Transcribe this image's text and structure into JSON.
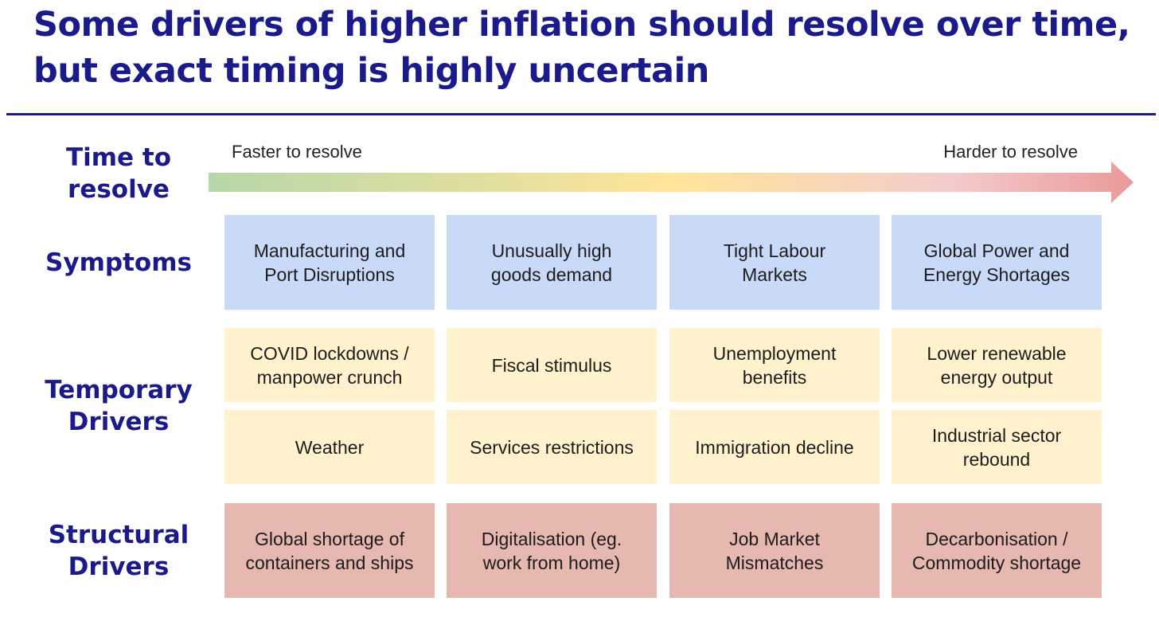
{
  "title": {
    "line1": "Some drivers of higher inflation should resolve over time,",
    "line2": "but exact timing is highly uncertain"
  },
  "labels": {
    "time_to_resolve": [
      "Time to",
      "resolve"
    ],
    "symptoms": [
      "Symptoms"
    ],
    "temporary_drivers": [
      "Temporary",
      "Drivers"
    ],
    "structural_drivers": [
      "Structural",
      "Drivers"
    ]
  },
  "scale": {
    "left": "Faster to resolve",
    "right": "Harder to resolve",
    "colors": [
      "#b6d7a8",
      "#ffe599",
      "#f4cccc",
      "#ea9999"
    ]
  },
  "symptoms": [
    [
      "Manufacturing and",
      "Port Disruptions"
    ],
    [
      "Unusually high",
      "goods demand"
    ],
    [
      "Tight Labour",
      "Markets"
    ],
    [
      "Global Power and",
      "Energy Shortages"
    ]
  ],
  "temporary_row1": [
    [
      "COVID lockdowns /",
      "manpower crunch"
    ],
    [
      "Fiscal stimulus"
    ],
    [
      "Unemployment",
      "benefits"
    ],
    [
      "Lower renewable",
      "energy output"
    ]
  ],
  "temporary_row2": [
    [
      "Weather"
    ],
    [
      "Services restrictions"
    ],
    [
      "Immigration decline"
    ],
    [
      "Industrial sector",
      "rebound"
    ]
  ],
  "structural": [
    [
      "Global shortage of",
      "containers and ships"
    ],
    [
      "Digitalisation (eg.",
      "work from home)"
    ],
    [
      "Job Market",
      "Mismatches"
    ],
    [
      "Decarbonisation /",
      "Commodity shortage"
    ]
  ],
  "colors": {
    "title": "#1a1a8a",
    "symptoms_cell": "#c9daf8",
    "temporary_cell": "#fff2cc",
    "structural_cell": "#e6b8af"
  }
}
